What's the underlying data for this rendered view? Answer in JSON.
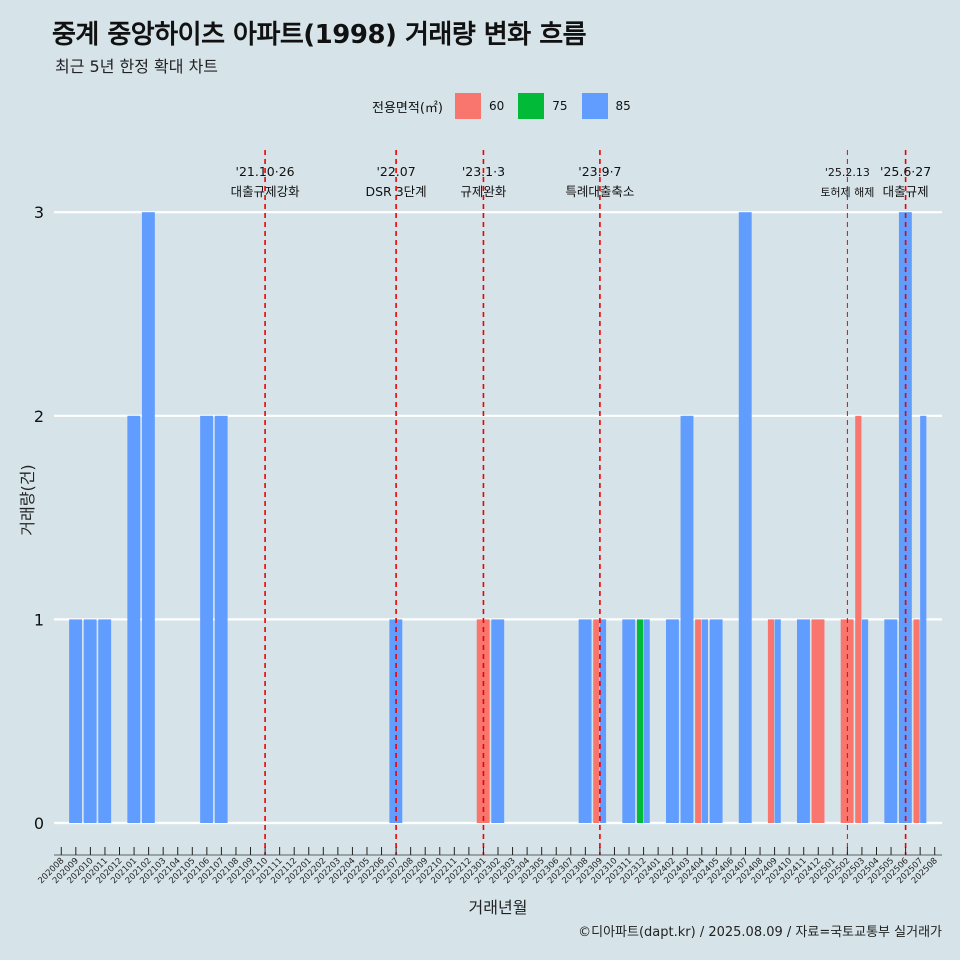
{
  "header": {
    "title": "중계 중앙하이츠 아파트(1998) 거래량 변화 흐름",
    "subtitle": "최근 5년 한정 확대 차트"
  },
  "legend": {
    "title": "전용면적(㎡)",
    "items": [
      {
        "label": "60",
        "color": "#F8766D"
      },
      {
        "label": "75",
        "color": "#00BA38"
      },
      {
        "label": "85",
        "color": "#619CFF"
      }
    ]
  },
  "caption": "©디아파트(dapt.kr) / 2025.08.09 / 자료=국토교통부 실거래가",
  "chart_data": {
    "type": "bar",
    "xlabel": "거래년월",
    "ylabel": "거래량(건)",
    "ylim": [
      0,
      3
    ],
    "yticks": [
      0,
      1,
      2,
      3
    ],
    "grid": true,
    "legend_position": "top",
    "categories": [
      "202008",
      "202009",
      "202010",
      "202011",
      "202012",
      "202101",
      "202102",
      "202103",
      "202104",
      "202105",
      "202106",
      "202107",
      "202108",
      "202109",
      "202110",
      "202111",
      "202112",
      "202201",
      "202202",
      "202203",
      "202204",
      "202205",
      "202206",
      "202207",
      "202208",
      "202209",
      "202210",
      "202211",
      "202212",
      "202301",
      "202302",
      "202303",
      "202304",
      "202305",
      "202306",
      "202307",
      "202308",
      "202309",
      "202310",
      "202311",
      "202312",
      "202401",
      "202402",
      "202403",
      "202404",
      "202405",
      "202406",
      "202407",
      "202408",
      "202409",
      "202410",
      "202411",
      "202412",
      "202501",
      "202502",
      "202503",
      "202504",
      "202505",
      "202506",
      "202507",
      "202508"
    ],
    "series": [
      {
        "name": "60",
        "color": "#F8766D",
        "values": [
          0,
          0,
          0,
          0,
          0,
          0,
          0,
          0,
          0,
          0,
          0,
          0,
          0,
          0,
          0,
          0,
          0,
          0,
          0,
          0,
          0,
          0,
          0,
          0,
          0,
          0,
          0,
          0,
          0,
          1,
          0,
          0,
          0,
          0,
          0,
          0,
          0,
          1,
          0,
          0,
          0,
          0,
          0,
          0,
          1,
          0,
          0,
          0,
          0,
          1,
          0,
          0,
          1,
          0,
          1,
          2,
          0,
          0,
          0,
          1,
          0
        ]
      },
      {
        "name": "75",
        "color": "#00BA38",
        "values": [
          0,
          0,
          0,
          0,
          0,
          0,
          0,
          0,
          0,
          0,
          0,
          0,
          0,
          0,
          0,
          0,
          0,
          0,
          0,
          0,
          0,
          0,
          0,
          0,
          0,
          0,
          0,
          0,
          0,
          0,
          0,
          0,
          0,
          0,
          0,
          0,
          0,
          0,
          0,
          0,
          1,
          0,
          0,
          0,
          0,
          0,
          0,
          0,
          0,
          0,
          0,
          0,
          0,
          0,
          0,
          0,
          0,
          0,
          0,
          0,
          0
        ]
      },
      {
        "name": "85",
        "color": "#619CFF",
        "values": [
          0,
          1,
          1,
          1,
          0,
          2,
          3,
          0,
          0,
          0,
          2,
          2,
          0,
          0,
          0,
          0,
          0,
          0,
          0,
          0,
          0,
          0,
          0,
          1,
          0,
          0,
          0,
          0,
          0,
          0,
          1,
          0,
          0,
          0,
          0,
          0,
          1,
          1,
          0,
          1,
          1,
          0,
          1,
          2,
          1,
          1,
          0,
          3,
          0,
          1,
          0,
          1,
          0,
          0,
          0,
          1,
          0,
          1,
          3,
          2,
          0
        ]
      }
    ],
    "events": [
      {
        "month": "202110",
        "line1": "'21.10·26",
        "line2": "대출규제강화"
      },
      {
        "month": "202207",
        "line1": "'22.07",
        "line2": "DSR 3단계"
      },
      {
        "month": "202301",
        "line1": "'23.1·3",
        "line2": "규제완화"
      },
      {
        "month": "202309",
        "line1": "'23.9·7",
        "line2": "특례대출축소"
      },
      {
        "month": "202502",
        "line1": "'25.2.13",
        "line2": "토허제 해제",
        "minor": true
      },
      {
        "month": "202506",
        "line1": "'25.6·27",
        "line2": "대출규제"
      }
    ]
  }
}
